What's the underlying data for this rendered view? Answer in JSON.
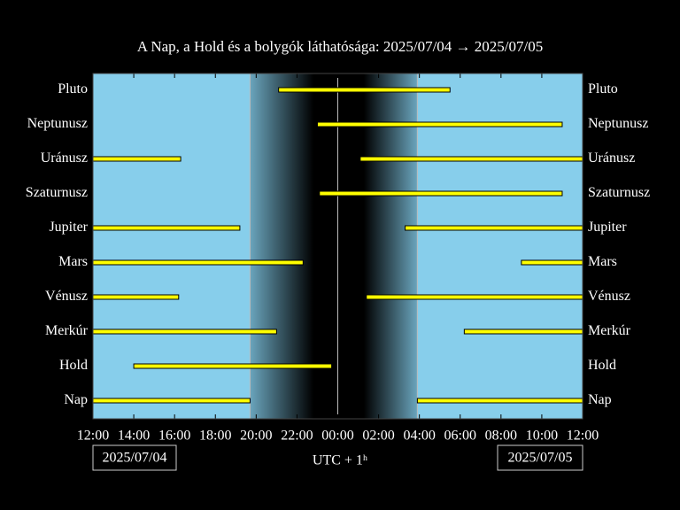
{
  "chart_data": {
    "type": "timeline",
    "title": "A Nap, a Hold és a bolygók láthatósága: 2025/07/04 → 2025/07/05",
    "xlabel": "UTC + 1ʰ",
    "start_date": "2025/07/04",
    "end_date": "2025/07/05",
    "xlim": [
      0,
      24
    ],
    "xticks": [
      {
        "value": 0,
        "label": "12:00"
      },
      {
        "value": 2,
        "label": "14:00"
      },
      {
        "value": 4,
        "label": "16:00"
      },
      {
        "value": 6,
        "label": "18:00"
      },
      {
        "value": 8,
        "label": "20:00"
      },
      {
        "value": 10,
        "label": "22:00"
      },
      {
        "value": 12,
        "label": "00:00"
      },
      {
        "value": 14,
        "label": "02:00"
      },
      {
        "value": 16,
        "label": "04:00"
      },
      {
        "value": 18,
        "label": "06:00"
      },
      {
        "value": 20,
        "label": "08:00"
      },
      {
        "value": 22,
        "label": "10:00"
      },
      {
        "value": 24,
        "label": "12:00"
      }
    ],
    "night": [
      7.7,
      15.9
    ],
    "midnight": 12,
    "color": "#ffff00",
    "sky_color": "#87ceeb",
    "series": [
      {
        "name": "Pluto",
        "segments": [
          [
            9.1,
            17.5
          ]
        ]
      },
      {
        "name": "Neptunusz",
        "segments": [
          [
            11,
            23
          ]
        ]
      },
      {
        "name": "Uránusz",
        "segments": [
          [
            0,
            4.3
          ],
          [
            13.1,
            24
          ]
        ]
      },
      {
        "name": "Szaturnusz",
        "segments": [
          [
            11.1,
            23
          ]
        ]
      },
      {
        "name": "Jupiter",
        "segments": [
          [
            0,
            7.2
          ],
          [
            15.3,
            24
          ]
        ]
      },
      {
        "name": "Mars",
        "segments": [
          [
            0,
            10.3
          ],
          [
            21,
            24
          ]
        ]
      },
      {
        "name": "Vénusz",
        "segments": [
          [
            0,
            4.2
          ],
          [
            13.4,
            24
          ]
        ]
      },
      {
        "name": "Merkúr",
        "segments": [
          [
            0,
            9
          ],
          [
            18.2,
            24
          ]
        ]
      },
      {
        "name": "Hold",
        "segments": [
          [
            2,
            11.7
          ]
        ]
      },
      {
        "name": "Nap",
        "segments": [
          [
            0,
            7.7
          ],
          [
            15.9,
            24
          ]
        ]
      }
    ]
  }
}
